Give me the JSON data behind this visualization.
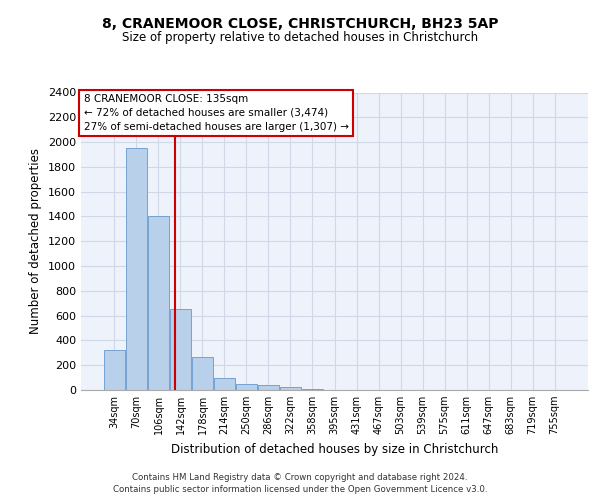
{
  "title1": "8, CRANEMOOR CLOSE, CHRISTCHURCH, BH23 5AP",
  "title2": "Size of property relative to detached houses in Christchurch",
  "xlabel": "Distribution of detached houses by size in Christchurch",
  "ylabel": "Number of detached properties",
  "bar_labels": [
    "34sqm",
    "70sqm",
    "106sqm",
    "142sqm",
    "178sqm",
    "214sqm",
    "250sqm",
    "286sqm",
    "322sqm",
    "358sqm",
    "395sqm",
    "431sqm",
    "467sqm",
    "503sqm",
    "539sqm",
    "575sqm",
    "611sqm",
    "647sqm",
    "683sqm",
    "719sqm",
    "755sqm"
  ],
  "bar_values": [
    325,
    1950,
    1400,
    650,
    270,
    100,
    45,
    40,
    25,
    10,
    0,
    0,
    0,
    0,
    0,
    0,
    0,
    0,
    0,
    0,
    0
  ],
  "bar_color": "#b8d0ea",
  "bar_edge_color": "#6699cc",
  "ylim": [
    0,
    2400
  ],
  "yticks": [
    0,
    200,
    400,
    600,
    800,
    1000,
    1200,
    1400,
    1600,
    1800,
    2000,
    2200,
    2400
  ],
  "vline_x": 2.77,
  "vline_color": "#cc0000",
  "annotation_title": "8 CRANEMOOR CLOSE: 135sqm",
  "annotation_line1": "← 72% of detached houses are smaller (3,474)",
  "annotation_line2": "27% of semi-detached houses are larger (1,307) →",
  "annotation_box_color": "#cc0000",
  "grid_color": "#d0d8e8",
  "footer1": "Contains HM Land Registry data © Crown copyright and database right 2024.",
  "footer2": "Contains public sector information licensed under the Open Government Licence v3.0.",
  "bg_color": "#eef2fa"
}
